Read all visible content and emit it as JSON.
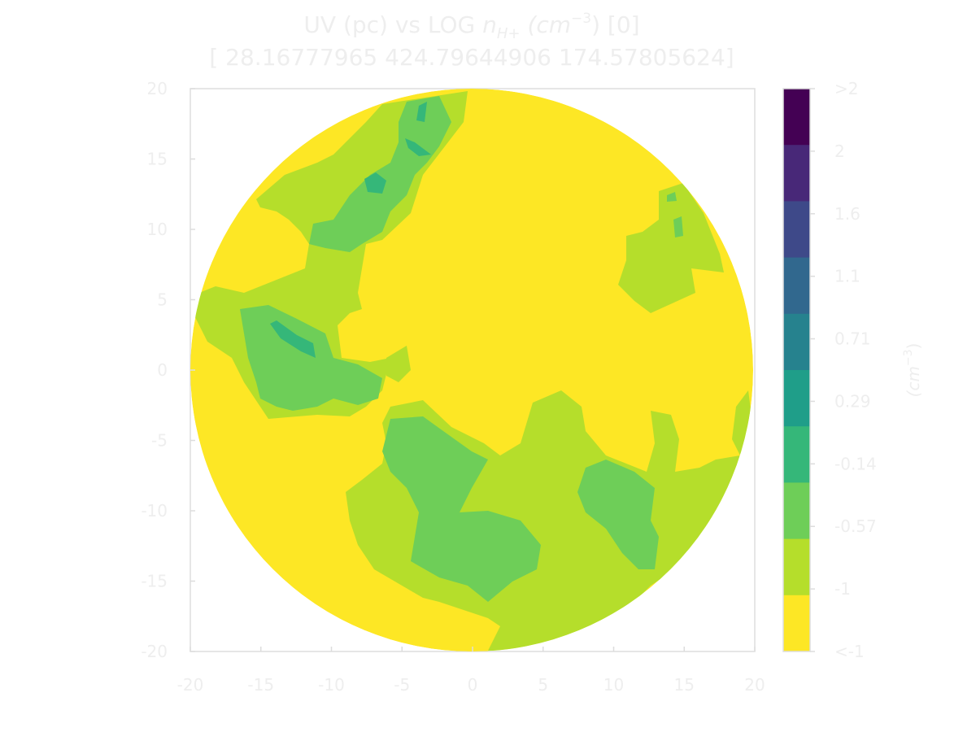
{
  "chart_data": {
    "type": "contour",
    "title_line1_prefix": "UV (pc) vs LOG ",
    "title_line1_var": "n",
    "title_line1_sub": "H+",
    "title_line1_unit": "(cm",
    "title_line1_exp": "−3",
    "title_line1_suffix": ") [0]",
    "title_line2": "[ 28.16777965 424.79644906 174.57805624]",
    "xlim": [
      -20,
      20
    ],
    "ylim": [
      -20,
      20
    ],
    "x_ticks": [
      "-20",
      "-15",
      "-10",
      "-5",
      "0",
      "5",
      "10",
      "15",
      "20"
    ],
    "y_ticks": [
      "20",
      "15",
      "10",
      "5",
      "0",
      "-5",
      "-10",
      "-15",
      "-20"
    ],
    "colorbar": {
      "label": "(cm",
      "label_exp": "−3",
      "label_suffix": ")",
      "tick_labels": [
        ">2",
        "2",
        "1.6",
        "1.1",
        "0.71",
        "0.29",
        "-0.14",
        "-0.57",
        "-1",
        "<-1"
      ],
      "colors_top_to_bottom": [
        "#440154",
        "#482878",
        "#3e4989",
        "#31688e",
        "#26828e",
        "#1f9e89",
        "#35b779",
        "#6ece58",
        "#b5de2b",
        "#fde725"
      ]
    },
    "disk_radius": 20,
    "regions": [
      {
        "level": "<-1",
        "color": "#fde725",
        "x": [
          -20,
          20
        ],
        "y": [
          -20,
          20
        ],
        "note": "background disk"
      },
      {
        "level": "-1 to -0.57",
        "color": "#b5de2b",
        "x": [
          -19.5,
          8
        ],
        "y": [
          -19,
          19
        ]
      },
      {
        "level": "-0.57 to -0.14",
        "color": "#6ece58",
        "x": [
          -16,
          13
        ],
        "y": [
          -17,
          19
        ]
      },
      {
        "level": "-0.14 to 0.29",
        "color": "#35b779",
        "x": [
          -14,
          -2
        ],
        "y": [
          1,
          19
        ]
      }
    ]
  }
}
